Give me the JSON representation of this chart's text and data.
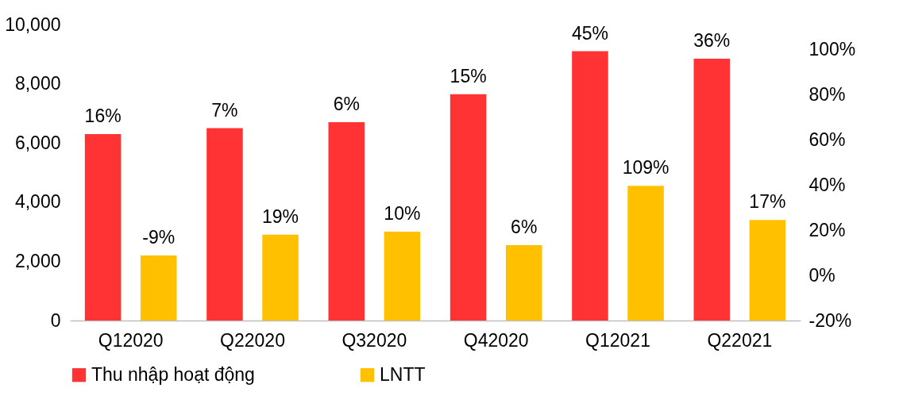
{
  "chart_data": {
    "type": "bar",
    "categories": [
      "Q12020",
      "Q22020",
      "Q32020",
      "Q42020",
      "Q12021",
      "Q22021"
    ],
    "series": [
      {
        "name": "Thu nhập hoạt động",
        "color": "#ff3333",
        "values": [
          6300,
          6500,
          6700,
          7650,
          9100,
          8850
        ]
      },
      {
        "name": "LNTT",
        "color": "#ffc000",
        "values": [
          2200,
          2900,
          3000,
          2550,
          4550,
          3400
        ]
      }
    ],
    "annotations": [
      "16%",
      "7%",
      "6%",
      "15%",
      "45%",
      "36%",
      "-9%",
      "19%",
      "10%",
      "6%",
      "109%",
      "17%"
    ],
    "ylim": [
      0,
      10000
    ],
    "yticks": [
      {
        "value": 0,
        "label": "0"
      },
      {
        "value": 2000,
        "label": "2,000"
      },
      {
        "value": 4000,
        "label": "4,000"
      },
      {
        "value": 6000,
        "label": "6,000"
      },
      {
        "value": 8000,
        "label": "8,000"
      },
      {
        "value": 10000,
        "label": "10,000"
      }
    ],
    "y2lim": [
      -20,
      100
    ],
    "y2ticks": [
      {
        "value": -20,
        "label": "-20%"
      },
      {
        "value": 0,
        "label": "0%"
      },
      {
        "value": 20,
        "label": "20%"
      },
      {
        "value": 40,
        "label": "40%"
      },
      {
        "value": 60,
        "label": "60%"
      },
      {
        "value": 80,
        "label": "80%"
      },
      {
        "value": 100,
        "label": "100%"
      }
    ],
    "grid": false,
    "legend": "bottom"
  }
}
